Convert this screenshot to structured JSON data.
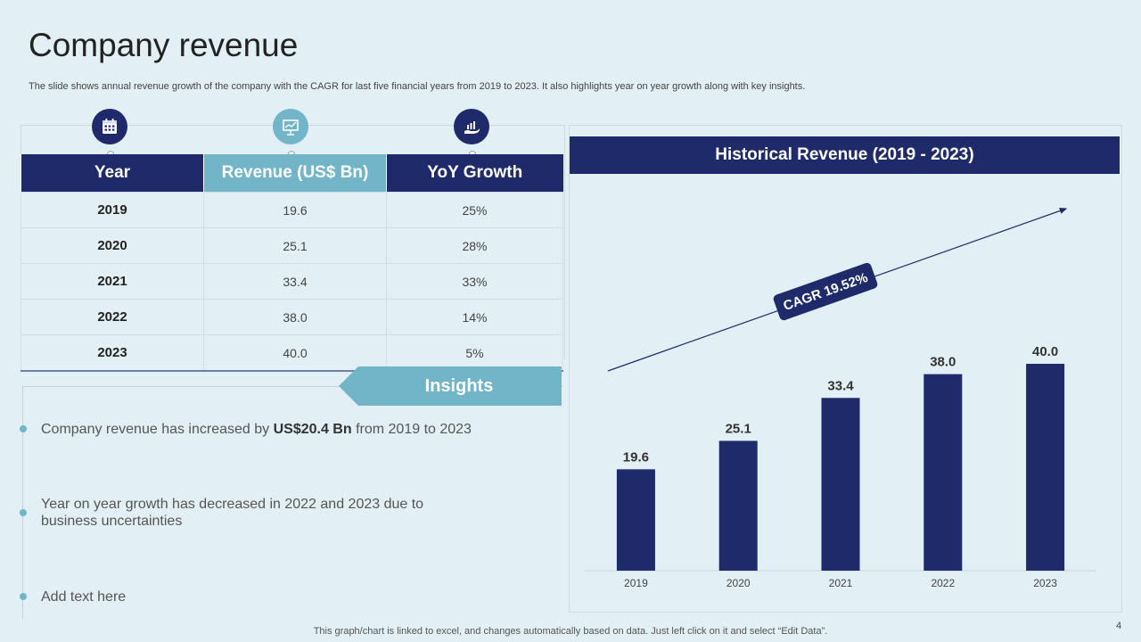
{
  "title": "Company revenue",
  "subtitle": "The slide shows annual revenue growth of the company with the CAGR for last five financial years from 2019 to 2023. It also highlights year on year growth along with key insights.",
  "table": {
    "headers": [
      "Year",
      "Revenue (US$ Bn)",
      "YoY Growth"
    ],
    "rows": [
      [
        "2019",
        "19.6",
        "25%"
      ],
      [
        "2020",
        "25.1",
        "28%"
      ],
      [
        "2021",
        "33.4",
        "33%"
      ],
      [
        "2022",
        "38.0",
        "14%"
      ],
      [
        "2023",
        "40.0",
        "5%"
      ]
    ],
    "icons": [
      "calendar-icon",
      "presentation-chart-icon",
      "growth-hand-icon"
    ]
  },
  "insights": {
    "label": "Insights",
    "bullets": [
      {
        "pre": "Company revenue  has increased by ",
        "bold": "US$20.4 Bn",
        "post": " from 2019 to 2023"
      },
      {
        "pre": "Year on year growth has decreased in 2022 and 2023 due to business uncertainties",
        "bold": "",
        "post": ""
      },
      {
        "pre": "Add text here",
        "bold": "",
        "post": ""
      }
    ]
  },
  "chart_data": {
    "type": "bar",
    "title": "Historical Revenue (2019 - 2023)",
    "categories": [
      "2019",
      "2020",
      "2021",
      "2022",
      "2023"
    ],
    "values": [
      19.6,
      25.1,
      33.4,
      38.0,
      40.0
    ],
    "value_labels": [
      "19.6",
      "25.1",
      "33.4",
      "38.0",
      "40.0"
    ],
    "ylim": [
      0,
      50
    ],
    "annotation": "CAGR 19.52%",
    "bar_color": "#1f2a6b",
    "grid": false
  },
  "footer": "This graph/chart is linked to excel,  and changes automatically based on data. Just left click on it and select “Edit Data”.",
  "page_number": "4",
  "colors": {
    "navy": "#1f2a6b",
    "teal": "#72b5c8",
    "background": "#e2eff4"
  }
}
